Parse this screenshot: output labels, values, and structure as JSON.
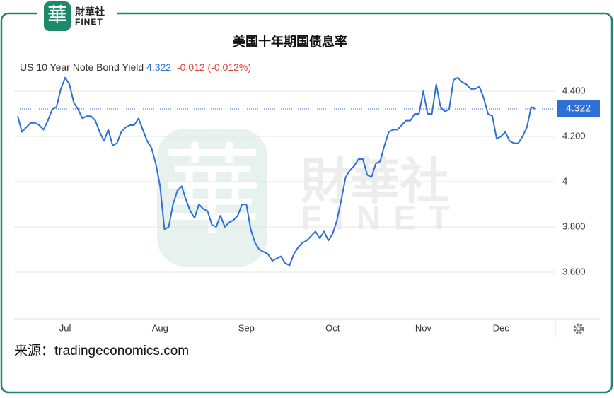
{
  "brand": {
    "logo_char": "華",
    "name": "財華社",
    "latin": "FINET"
  },
  "source": "来源：tradingeconomics.com",
  "chart_data": {
    "type": "line",
    "title": "美国十年期国债息率",
    "change": "-0.012 (-0.012%)",
    "categories": [
      null,
      null,
      null,
      null,
      null,
      null,
      null,
      null,
      null,
      null,
      null,
      "Jul",
      null,
      null,
      null,
      null,
      null,
      null,
      null,
      null,
      null,
      null,
      null,
      null,
      null,
      null,
      null,
      null,
      null,
      null,
      null,
      null,
      null,
      "Aug",
      null,
      null,
      null,
      null,
      null,
      null,
      null,
      null,
      null,
      null,
      null,
      null,
      null,
      null,
      null,
      null,
      null,
      null,
      null,
      "Sep",
      null,
      null,
      null,
      null,
      null,
      null,
      null,
      null,
      null,
      null,
      null,
      null,
      null,
      null,
      null,
      null,
      null,
      null,
      null,
      "Oct",
      null,
      null,
      null,
      null,
      null,
      null,
      null,
      null,
      null,
      null,
      null,
      null,
      null,
      null,
      null,
      null,
      null,
      null,
      null,
      null,
      "Nov",
      null,
      null,
      null,
      null,
      null,
      null,
      null,
      null,
      null,
      null,
      null,
      null,
      null,
      null,
      null,
      null,
      null,
      "Dec",
      null,
      null,
      null,
      null,
      null,
      null,
      null,
      null
    ],
    "series": [
      {
        "name": "US 10 Year Note Bond Yield",
        "color": "#2e6fd8",
        "values": [
          4.29,
          4.22,
          4.24,
          4.26,
          4.26,
          4.25,
          4.23,
          4.27,
          4.32,
          4.33,
          4.41,
          4.46,
          4.43,
          4.35,
          4.32,
          4.28,
          4.29,
          4.29,
          4.27,
          4.22,
          4.18,
          4.23,
          4.16,
          4.17,
          4.22,
          4.24,
          4.25,
          4.25,
          4.28,
          4.23,
          4.18,
          4.15,
          4.08,
          3.98,
          3.79,
          3.8,
          3.9,
          3.96,
          3.98,
          3.92,
          3.87,
          3.84,
          3.9,
          3.88,
          3.87,
          3.81,
          3.8,
          3.85,
          3.8,
          3.82,
          3.83,
          3.85,
          3.9,
          3.9,
          3.79,
          3.73,
          3.7,
          3.69,
          3.68,
          3.65,
          3.66,
          3.67,
          3.64,
          3.63,
          3.68,
          3.71,
          3.73,
          3.74,
          3.76,
          3.78,
          3.75,
          3.78,
          3.74,
          3.77,
          3.83,
          3.92,
          4.02,
          4.05,
          4.07,
          4.1,
          4.1,
          4.03,
          4.02,
          4.08,
          4.09,
          4.16,
          4.22,
          4.23,
          4.23,
          4.25,
          4.27,
          4.27,
          4.3,
          4.3,
          4.4,
          4.3,
          4.3,
          4.43,
          4.33,
          4.31,
          4.32,
          4.45,
          4.46,
          4.44,
          4.43,
          4.41,
          4.41,
          4.42,
          4.37,
          4.3,
          4.29,
          4.19,
          4.2,
          4.22,
          4.18,
          4.17,
          4.17,
          4.2,
          4.24,
          4.33,
          4.322
        ]
      }
    ],
    "ylim": [
      3.4,
      4.5
    ],
    "yticks": [
      {
        "value": 3.6,
        "label": "3.600"
      },
      {
        "value": 3.8,
        "label": "3.800"
      },
      4,
      {
        "value": 4.2,
        "label": "4.200"
      },
      {
        "value": 4.4,
        "label": "4.400"
      }
    ],
    "grid": true
  }
}
